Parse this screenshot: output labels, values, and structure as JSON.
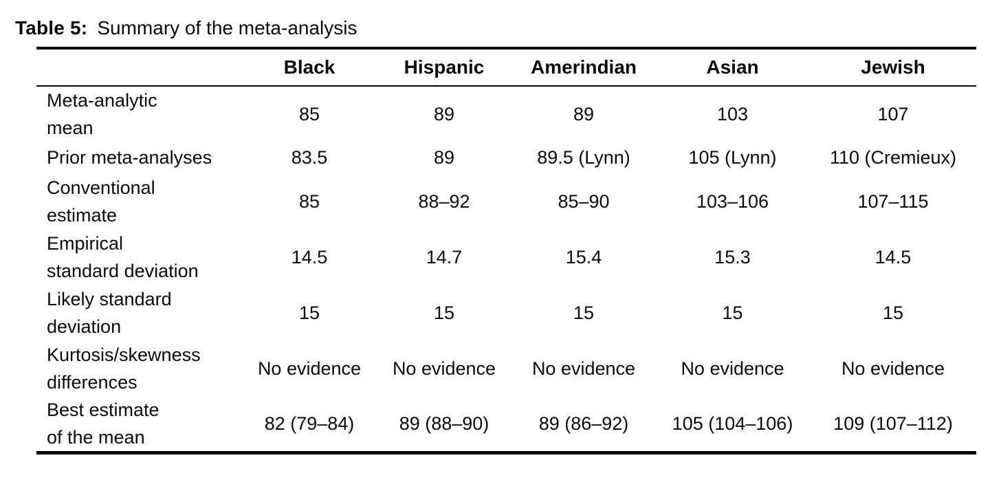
{
  "title": {
    "label": "Table 5:",
    "text": "Summary of the meta-analysis"
  },
  "table": {
    "columns": [
      "Black",
      "Hispanic",
      "Amerindian",
      "Asian",
      "Jewish"
    ],
    "rows": [
      {
        "label_lines": [
          "Meta-analytic",
          "mean"
        ],
        "values": [
          "85",
          "89",
          "89",
          "103",
          "107"
        ]
      },
      {
        "label_lines": [
          "Prior meta-analyses",
          ""
        ],
        "values": [
          "83.5",
          "89",
          "89.5 (Lynn)",
          "105 (Lynn)",
          "110 (Cremieux)"
        ]
      },
      {
        "label_lines": [
          "Conventional",
          "estimate"
        ],
        "values": [
          "85",
          "88–92",
          "85–90",
          "103–106",
          "107–115"
        ]
      },
      {
        "label_lines": [
          "Empirical",
          "standard deviation"
        ],
        "values": [
          "14.5",
          "14.7",
          "15.4",
          "15.3",
          "14.5"
        ]
      },
      {
        "label_lines": [
          "Likely standard",
          "deviation"
        ],
        "values": [
          "15",
          "15",
          "15",
          "15",
          "15"
        ]
      },
      {
        "label_lines": [
          "Kurtosis/skewness",
          "differences"
        ],
        "values": [
          "No evidence",
          "No evidence",
          "No evidence",
          "No evidence",
          "No evidence"
        ]
      },
      {
        "label_lines": [
          "Best estimate",
          "of the mean"
        ],
        "values": [
          "82 (79–84)",
          "89 (88–90)",
          "89 (86–92)",
          "105 (104–106)",
          "109 (107–112)"
        ]
      }
    ]
  },
  "colors": {
    "text": "#0b0b0b",
    "rule": "#000000",
    "background": "#ffffff"
  }
}
